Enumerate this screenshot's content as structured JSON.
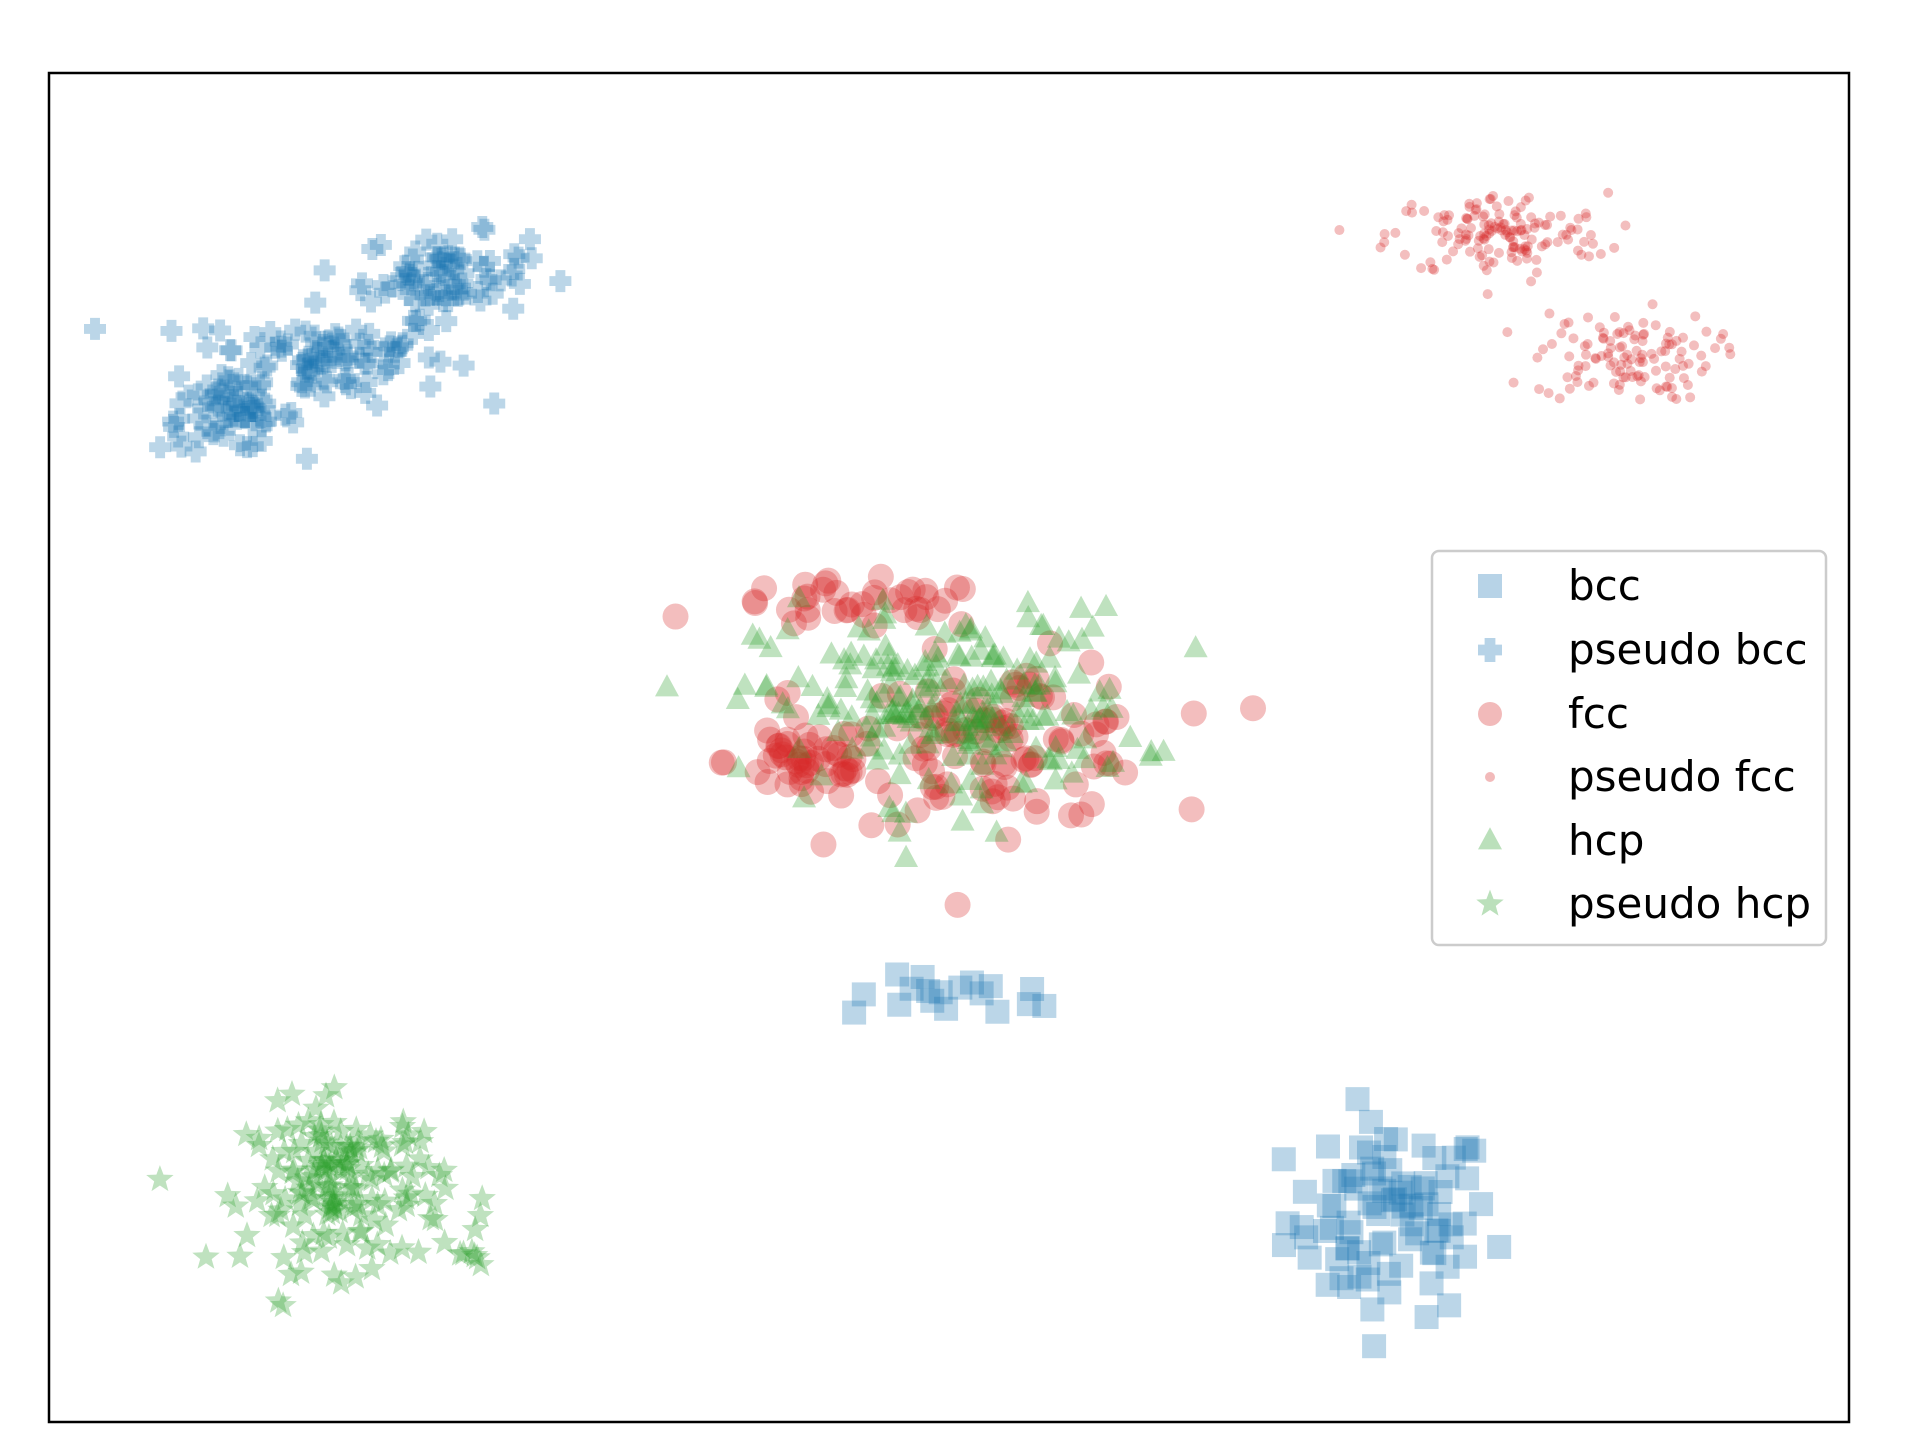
{
  "chart_data": {
    "type": "scatter",
    "title": "",
    "xlabel": "",
    "ylabel": "",
    "xlim": [
      0,
      100
    ],
    "ylim": [
      0,
      100
    ],
    "axis_ticks": false,
    "grid": false,
    "legend_position": "right",
    "series": [
      {
        "name": "bcc",
        "marker": "square",
        "color": "#1f77b4",
        "clusters": [
          {
            "center": [
              74.5,
              15
            ],
            "spread": [
              5.2,
              6.5
            ],
            "count": 90
          },
          {
            "center": [
              51,
              31.5
            ],
            "spread": [
              6,
              1.4
            ],
            "count": 18
          }
        ]
      },
      {
        "name": "pseudo bcc",
        "marker": "plus",
        "color": "#1f77b4",
        "clusters": [
          {
            "center": [
              15,
              79
            ],
            "spread": [
              6.5,
              3.2
            ],
            "count": 100
          },
          {
            "center": [
              22,
              85
            ],
            "spread": [
              4.2,
              2.8
            ],
            "count": 80
          },
          {
            "center": [
              10,
              74.5
            ],
            "spread": [
              3.5,
              2.2
            ],
            "count": 60
          }
        ]
      },
      {
        "name": "fcc",
        "marker": "circle",
        "color": "#d62728",
        "clusters": [
          {
            "center": [
              42,
              49
            ],
            "spread": [
              4,
              2.8
            ],
            "count": 50
          },
          {
            "center": [
              45,
              60.5
            ],
            "spread": [
              7,
              1.6
            ],
            "count": 40
          },
          {
            "center": [
              53,
              50.5
            ],
            "spread": [
              8,
              5.5
            ],
            "count": 110
          }
        ]
      },
      {
        "name": "pseudo fcc",
        "marker": "dot",
        "color": "#d62728",
        "clusters": [
          {
            "center": [
              80.5,
              88
            ],
            "spread": [
              5.5,
              2.8
            ],
            "count": 150
          },
          {
            "center": [
              87.5,
              79
            ],
            "spread": [
              4.5,
              3
            ],
            "count": 120
          }
        ]
      },
      {
        "name": "hcp",
        "marker": "triangle",
        "color": "#2ca02c",
        "clusters": [
          {
            "center": [
              50,
              53
            ],
            "spread": [
              9.5,
              6.5
            ],
            "count": 220
          }
        ]
      },
      {
        "name": "pseudo hcp",
        "marker": "star",
        "color": "#2ca02c",
        "clusters": [
          {
            "center": [
              16.5,
              17.5
            ],
            "spread": [
              5,
              5.5
            ],
            "count": 170
          },
          {
            "center": [
              23.5,
              12
            ],
            "spread": [
              1.2,
              0.8
            ],
            "count": 6
          }
        ]
      }
    ]
  }
}
